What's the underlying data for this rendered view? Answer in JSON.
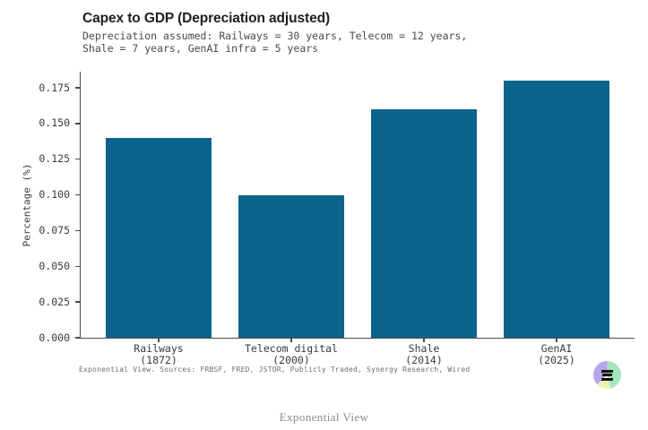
{
  "chart_data": {
    "type": "bar",
    "title": "Capex to GDP (Depreciation adjusted)",
    "subtitle_lines": [
      "Depreciation assumed: Railways = 30 years, Telecom = 12 years,",
      "Shale = 7 years, GenAI infra = 5 years"
    ],
    "ylabel": "Percentage (%)",
    "xlabel": "",
    "categories": [
      "Railways",
      "Telecom digital",
      "Shale",
      "GenAI"
    ],
    "category_sublabels": [
      "(1872)",
      "(2000)",
      "(2014)",
      "(2025)"
    ],
    "values": [
      0.14,
      0.1,
      0.16,
      0.18
    ],
    "ytick_labels": [
      "0.000",
      "0.025",
      "0.050",
      "0.075",
      "0.100",
      "0.125",
      "0.150",
      "0.175"
    ],
    "ylim": [
      0,
      0.1863
    ],
    "grid": false,
    "legend_position": "none",
    "bar_color": "#0b648c",
    "source_note": "Exponential View. Sources: FRBSF, FRED, JSTOR, Publicly Traded, Synergy Research, Wired"
  },
  "footer": {
    "brand": "Exponential View"
  },
  "logo": {
    "label": "exponential-view-logo",
    "colors": {
      "green": "#a5e7bd",
      "yellow": "#eef2b0",
      "purple": "#b4a6e8",
      "glyph": "#121212"
    }
  }
}
